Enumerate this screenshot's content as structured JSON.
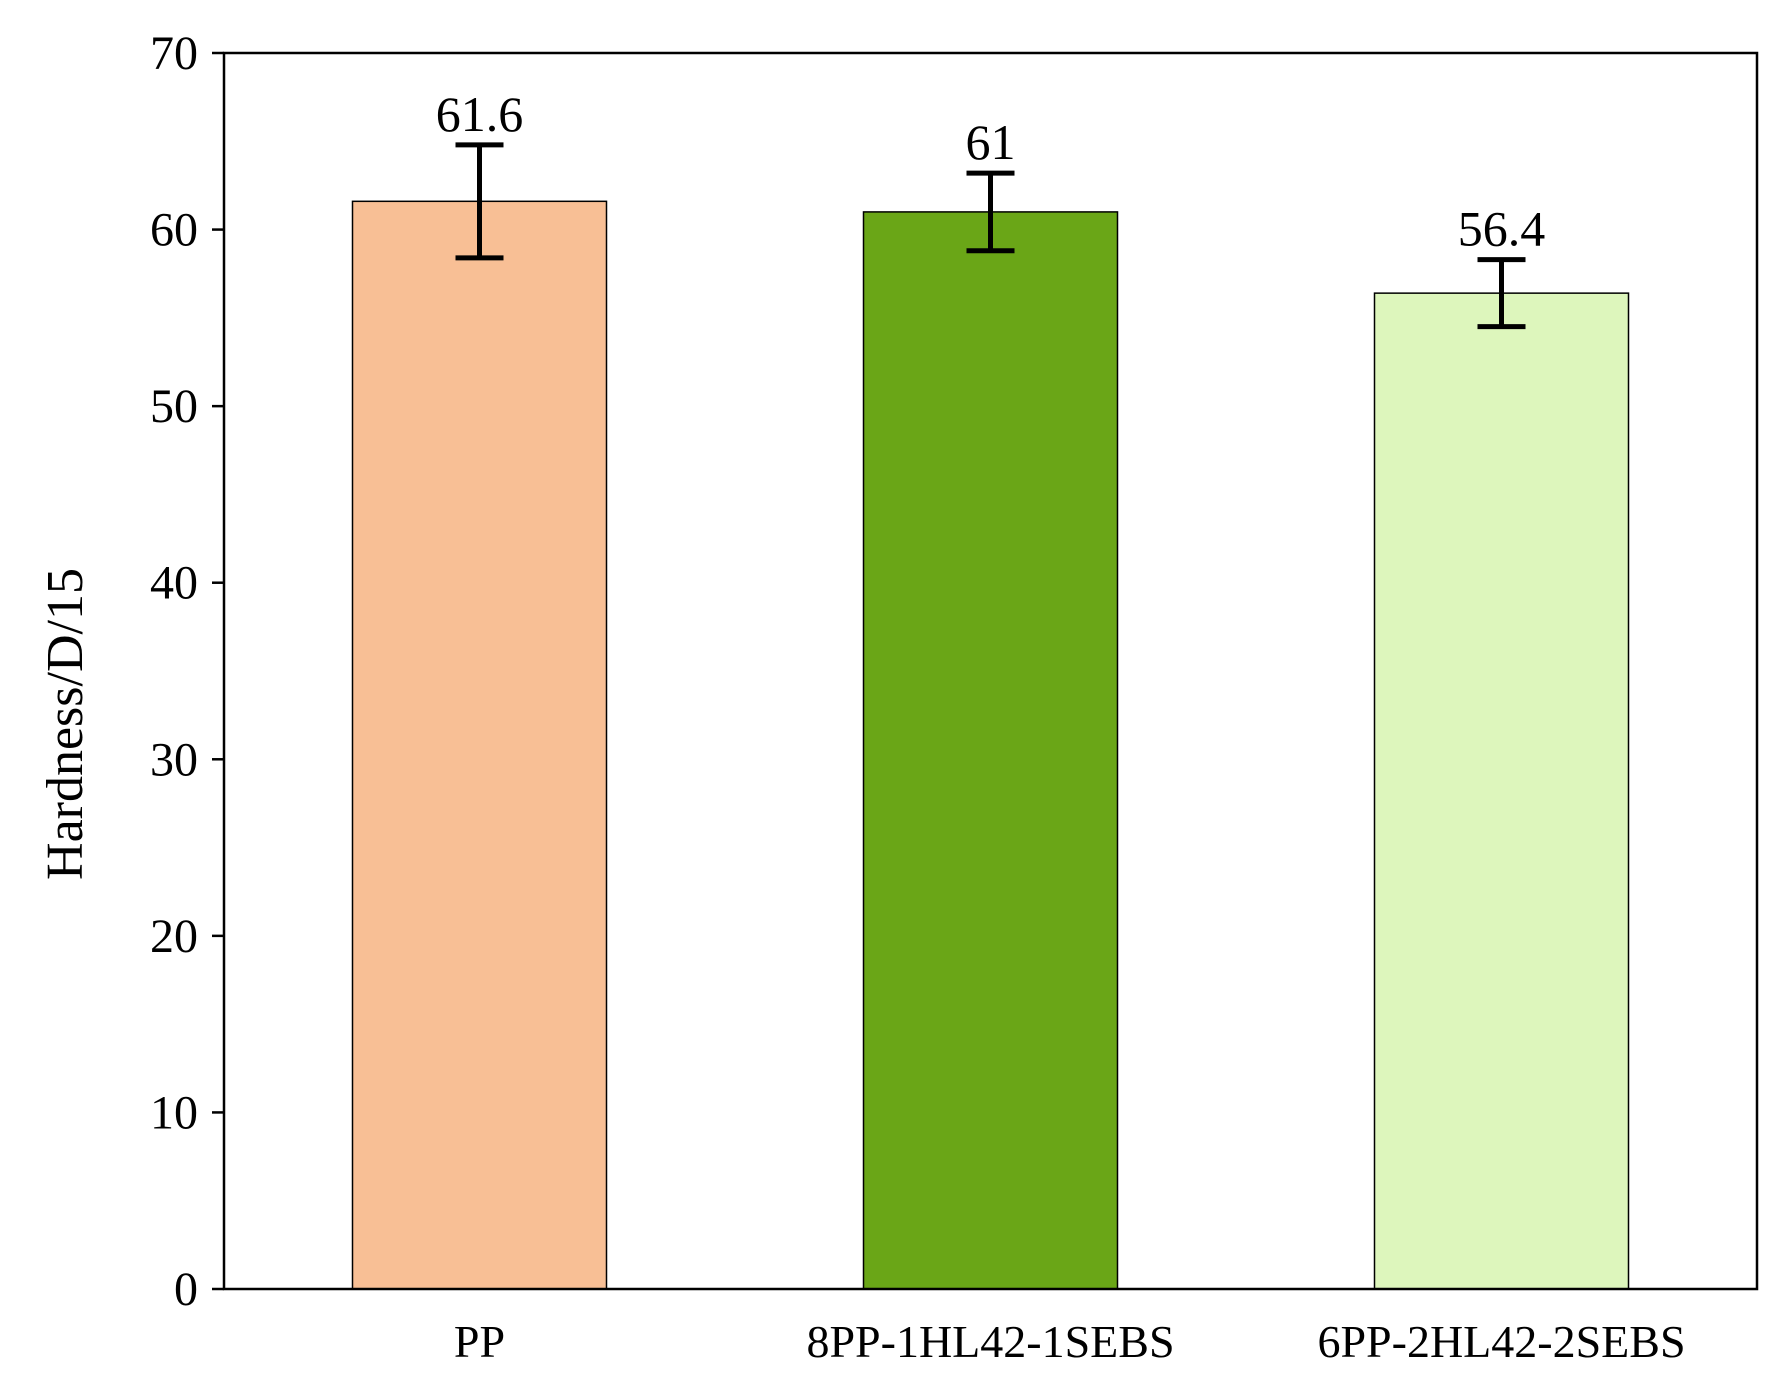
{
  "chart_data": {
    "type": "bar",
    "title": "",
    "xlabel": "",
    "ylabel": "Hardness/D/15",
    "categories": [
      "PP",
      "8PP-1HL42-1SEBS",
      "6PP-2HL42-2SEBS"
    ],
    "values": [
      61.6,
      61,
      56.4
    ],
    "data_labels": [
      "61.6",
      "61",
      "56.4"
    ],
    "error": [
      3.2,
      2.2,
      1.9
    ],
    "colors": [
      "#F8BF95",
      "#6AA617",
      "#DDF6BC"
    ],
    "ylim": [
      0,
      70
    ],
    "yticks": [
      0,
      10,
      20,
      30,
      40,
      50,
      60,
      70
    ],
    "ytick_labels": [
      "0",
      "10",
      "20",
      "30",
      "40",
      "50",
      "60",
      "70"
    ],
    "grid": false,
    "legend": "none"
  }
}
